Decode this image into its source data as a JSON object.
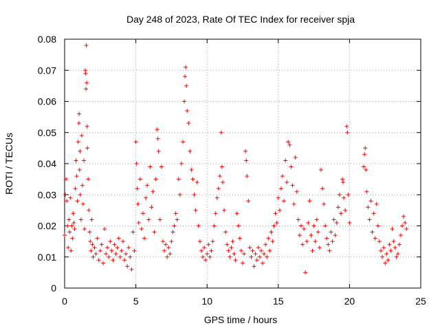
{
  "chart_data": {
    "type": "scatter",
    "title": "Day 248 of 2023, Rate Of TEC Index for receiver spja",
    "xlabel": "GPS time / hours",
    "ylabel": "ROTI / TECUs",
    "xlim": [
      0,
      25
    ],
    "ylim": [
      0,
      0.08
    ],
    "x_ticks": [
      "0",
      "5",
      "10",
      "15",
      "20",
      "25"
    ],
    "y_ticks": [
      "0",
      "0.01",
      "0.02",
      "0.03",
      "0.04",
      "0.05",
      "0.06",
      "0.07",
      "0.08"
    ],
    "grid": true,
    "marker": "+",
    "color": "#ff0000",
    "points": [
      [
        0.0,
        0.017
      ],
      [
        0.05,
        0.03
      ],
      [
        0.1,
        0.035
      ],
      [
        0.15,
        0.028
      ],
      [
        0.2,
        0.02
      ],
      [
        0.25,
        0.013
      ],
      [
        0.3,
        0.022
      ],
      [
        0.35,
        0.018
      ],
      [
        0.4,
        0.029
      ],
      [
        0.45,
        0.012
      ],
      [
        0.5,
        0.02
      ],
      [
        0.55,
        0.016
      ],
      [
        0.6,
        0.024
      ],
      [
        0.65,
        0.021
      ],
      [
        0.7,
        0.019
      ],
      [
        0.75,
        0.032
      ],
      [
        0.8,
        0.041
      ],
      [
        0.85,
        0.036
      ],
      [
        0.9,
        0.028
      ],
      [
        0.95,
        0.047
      ],
      [
        1.0,
        0.053
      ],
      [
        1.02,
        0.056
      ],
      [
        1.05,
        0.038
      ],
      [
        1.08,
        0.044
      ],
      [
        1.1,
        0.03
      ],
      [
        1.15,
        0.022
      ],
      [
        1.2,
        0.049
      ],
      [
        1.25,
        0.033
      ],
      [
        1.3,
        0.027
      ],
      [
        1.35,
        0.041
      ],
      [
        1.4,
        0.019
      ],
      [
        1.45,
        0.07
      ],
      [
        1.47,
        0.069
      ],
      [
        1.5,
        0.064
      ],
      [
        1.52,
        0.078
      ],
      [
        1.55,
        0.066
      ],
      [
        1.58,
        0.052
      ],
      [
        1.6,
        0.045
      ],
      [
        1.65,
        0.035
      ],
      [
        1.7,
        0.025
      ],
      [
        1.75,
        0.018
      ],
      [
        1.8,
        0.015
      ],
      [
        1.85,
        0.012
      ],
      [
        1.9,
        0.022
      ],
      [
        1.95,
        0.014
      ],
      [
        2.0,
        0.01
      ],
      [
        2.1,
        0.013
      ],
      [
        2.2,
        0.011
      ],
      [
        2.3,
        0.016
      ],
      [
        2.4,
        0.009
      ],
      [
        2.5,
        0.012
      ],
      [
        2.6,
        0.014
      ],
      [
        2.7,
        0.008
      ],
      [
        2.8,
        0.019
      ],
      [
        2.9,
        0.011
      ],
      [
        3.0,
        0.013
      ],
      [
        3.1,
        0.01
      ],
      [
        3.2,
        0.015
      ],
      [
        3.3,
        0.012
      ],
      [
        3.4,
        0.009
      ],
      [
        3.5,
        0.014
      ],
      [
        3.6,
        0.011
      ],
      [
        3.7,
        0.013
      ],
      [
        3.8,
        0.016
      ],
      [
        3.9,
        0.01
      ],
      [
        4.0,
        0.012
      ],
      [
        4.1,
        0.015
      ],
      [
        4.2,
        0.009
      ],
      [
        4.3,
        0.011
      ],
      [
        4.4,
        0.007
      ],
      [
        4.5,
        0.013
      ],
      [
        4.6,
        0.01
      ],
      [
        4.7,
        0.006
      ],
      [
        4.8,
        0.018
      ],
      [
        4.9,
        0.012
      ],
      [
        5.0,
        0.047
      ],
      [
        5.05,
        0.04
      ],
      [
        5.1,
        0.032
      ],
      [
        5.15,
        0.027
      ],
      [
        5.2,
        0.021
      ],
      [
        5.3,
        0.035
      ],
      [
        5.4,
        0.019
      ],
      [
        5.5,
        0.024
      ],
      [
        5.6,
        0.016
      ],
      [
        5.7,
        0.029
      ],
      [
        5.8,
        0.033
      ],
      [
        5.9,
        0.022
      ],
      [
        6.0,
        0.039
      ],
      [
        6.1,
        0.026
      ],
      [
        6.2,
        0.031
      ],
      [
        6.3,
        0.018
      ],
      [
        6.4,
        0.035
      ],
      [
        6.5,
        0.051
      ],
      [
        6.55,
        0.048
      ],
      [
        6.6,
        0.044
      ],
      [
        6.7,
        0.022
      ],
      [
        6.8,
        0.039
      ],
      [
        6.9,
        0.015
      ],
      [
        7.0,
        0.012
      ],
      [
        7.1,
        0.014
      ],
      [
        7.2,
        0.01
      ],
      [
        7.3,
        0.013
      ],
      [
        7.4,
        0.011
      ],
      [
        7.5,
        0.015
      ],
      [
        7.6,
        0.018
      ],
      [
        7.7,
        0.02
      ],
      [
        7.8,
        0.024
      ],
      [
        7.9,
        0.022
      ],
      [
        8.0,
        0.035
      ],
      [
        8.1,
        0.03
      ],
      [
        8.2,
        0.04
      ],
      [
        8.3,
        0.047
      ],
      [
        8.4,
        0.06
      ],
      [
        8.45,
        0.068
      ],
      [
        8.5,
        0.071
      ],
      [
        8.55,
        0.065
      ],
      [
        8.6,
        0.057
      ],
      [
        8.7,
        0.053
      ],
      [
        8.8,
        0.044
      ],
      [
        8.9,
        0.038
      ],
      [
        9.0,
        0.035
      ],
      [
        9.1,
        0.03
      ],
      [
        9.2,
        0.025
      ],
      [
        9.3,
        0.034
      ],
      [
        9.4,
        0.02
      ],
      [
        9.5,
        0.015
      ],
      [
        9.6,
        0.012
      ],
      [
        9.7,
        0.01
      ],
      [
        9.8,
        0.013
      ],
      [
        9.9,
        0.009
      ],
      [
        10.0,
        0.011
      ],
      [
        10.1,
        0.014
      ],
      [
        10.2,
        0.01
      ],
      [
        10.3,
        0.012
      ],
      [
        10.4,
        0.015
      ],
      [
        10.5,
        0.02
      ],
      [
        10.6,
        0.024
      ],
      [
        10.7,
        0.029
      ],
      [
        10.8,
        0.032
      ],
      [
        10.9,
        0.036
      ],
      [
        11.0,
        0.05
      ],
      [
        11.05,
        0.039
      ],
      [
        11.1,
        0.034
      ],
      [
        11.2,
        0.025
      ],
      [
        11.3,
        0.018
      ],
      [
        11.4,
        0.014
      ],
      [
        11.5,
        0.012
      ],
      [
        11.6,
        0.01
      ],
      [
        11.7,
        0.013
      ],
      [
        11.8,
        0.015
      ],
      [
        11.9,
        0.011
      ],
      [
        12.0,
        0.009
      ],
      [
        12.1,
        0.024
      ],
      [
        12.2,
        0.02
      ],
      [
        12.3,
        0.016
      ],
      [
        12.4,
        0.012
      ],
      [
        12.5,
        0.008
      ],
      [
        12.6,
        0.011
      ],
      [
        12.7,
        0.044
      ],
      [
        12.75,
        0.041
      ],
      [
        12.8,
        0.036
      ],
      [
        12.9,
        0.028
      ],
      [
        13.0,
        0.013
      ],
      [
        13.1,
        0.01
      ],
      [
        13.2,
        0.012
      ],
      [
        13.3,
        0.007
      ],
      [
        13.4,
        0.011
      ],
      [
        13.5,
        0.009
      ],
      [
        13.6,
        0.013
      ],
      [
        13.7,
        0.01
      ],
      [
        13.8,
        0.012
      ],
      [
        13.9,
        0.008
      ],
      [
        14.0,
        0.011
      ],
      [
        14.1,
        0.014
      ],
      [
        14.2,
        0.01
      ],
      [
        14.3,
        0.016
      ],
      [
        14.4,
        0.012
      ],
      [
        14.5,
        0.018
      ],
      [
        14.6,
        0.015
      ],
      [
        14.7,
        0.02
      ],
      [
        14.8,
        0.024
      ],
      [
        14.9,
        0.021
      ],
      [
        15.0,
        0.029
      ],
      [
        15.1,
        0.025
      ],
      [
        15.2,
        0.032
      ],
      [
        15.3,
        0.036
      ],
      [
        15.4,
        0.028
      ],
      [
        15.5,
        0.041
      ],
      [
        15.6,
        0.034
      ],
      [
        15.7,
        0.047
      ],
      [
        15.8,
        0.046
      ],
      [
        15.9,
        0.039
      ],
      [
        16.0,
        0.033
      ],
      [
        16.1,
        0.027
      ],
      [
        16.2,
        0.042
      ],
      [
        16.3,
        0.031
      ],
      [
        16.4,
        0.022
      ],
      [
        16.5,
        0.017
      ],
      [
        16.6,
        0.02
      ],
      [
        16.7,
        0.014
      ],
      [
        16.8,
        0.019
      ],
      [
        16.9,
        0.005
      ],
      [
        17.0,
        0.015
      ],
      [
        17.1,
        0.021
      ],
      [
        17.2,
        0.028
      ],
      [
        17.3,
        0.017
      ],
      [
        17.4,
        0.012
      ],
      [
        17.5,
        0.02
      ],
      [
        17.6,
        0.015
      ],
      [
        17.7,
        0.022
      ],
      [
        17.8,
        0.018
      ],
      [
        17.9,
        0.013
      ],
      [
        18.0,
        0.038
      ],
      [
        18.1,
        0.032
      ],
      [
        18.2,
        0.027
      ],
      [
        18.3,
        0.02
      ],
      [
        18.4,
        0.016
      ],
      [
        18.5,
        0.014
      ],
      [
        18.6,
        0.012
      ],
      [
        18.7,
        0.018
      ],
      [
        18.8,
        0.015
      ],
      [
        18.9,
        0.022
      ],
      [
        19.0,
        0.017
      ],
      [
        19.1,
        0.021
      ],
      [
        19.2,
        0.026
      ],
      [
        19.3,
        0.03
      ],
      [
        19.4,
        0.024
      ],
      [
        19.5,
        0.035
      ],
      [
        19.55,
        0.034
      ],
      [
        19.6,
        0.029
      ],
      [
        19.7,
        0.025
      ],
      [
        19.8,
        0.052
      ],
      [
        19.85,
        0.05
      ],
      [
        19.9,
        0.03
      ],
      [
        20.0,
        0.021
      ],
      [
        21.0,
        0.039
      ],
      [
        21.05,
        0.043
      ],
      [
        21.1,
        0.045
      ],
      [
        21.15,
        0.038
      ],
      [
        21.2,
        0.031
      ],
      [
        21.3,
        0.026
      ],
      [
        21.4,
        0.022
      ],
      [
        21.5,
        0.028
      ],
      [
        21.6,
        0.018
      ],
      [
        21.7,
        0.024
      ],
      [
        21.8,
        0.016
      ],
      [
        21.9,
        0.027
      ],
      [
        22.0,
        0.02
      ],
      [
        22.1,
        0.015
      ],
      [
        22.2,
        0.012
      ],
      [
        22.3,
        0.01
      ],
      [
        22.4,
        0.013
      ],
      [
        22.5,
        0.008
      ],
      [
        22.6,
        0.011
      ],
      [
        22.7,
        0.009
      ],
      [
        22.8,
        0.014
      ],
      [
        22.9,
        0.012
      ],
      [
        23.0,
        0.019
      ],
      [
        23.1,
        0.015
      ],
      [
        23.2,
        0.013
      ],
      [
        23.3,
        0.01
      ],
      [
        23.4,
        0.011
      ],
      [
        23.5,
        0.014
      ],
      [
        23.6,
        0.017
      ],
      [
        23.7,
        0.02
      ],
      [
        23.8,
        0.023
      ],
      [
        23.9,
        0.021
      ],
      [
        24.0,
        0.019
      ]
    ]
  }
}
